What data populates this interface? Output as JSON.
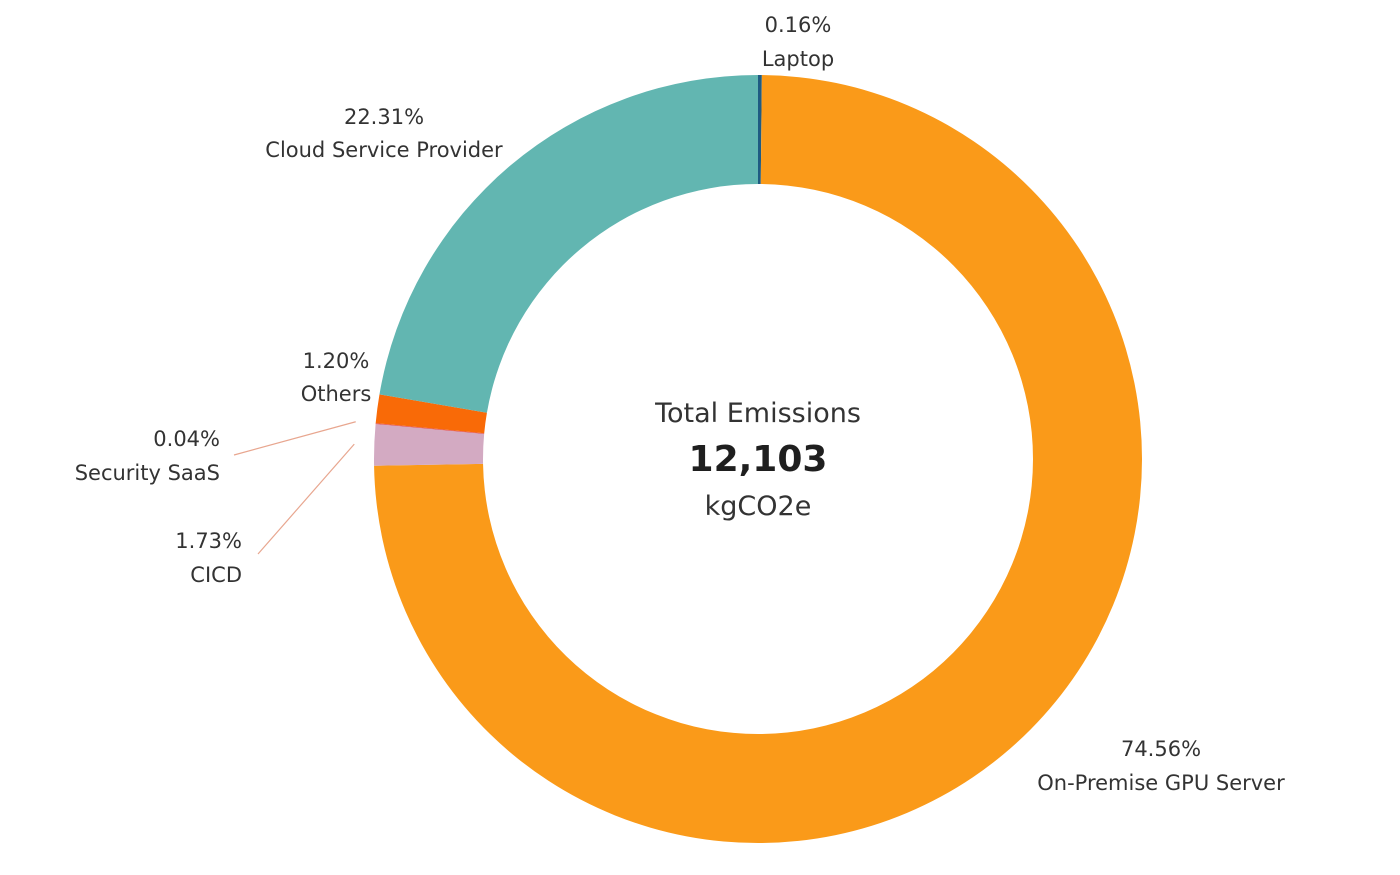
{
  "chart_data": {
    "type": "pie",
    "variant": "donut",
    "title": "",
    "center": {
      "title": "Total Emissions",
      "value": "12,103",
      "unit": "kgCO2e"
    },
    "total": 12103,
    "slices": [
      {
        "name": "Laptop",
        "percent": 0.16,
        "percent_label": "0.16%",
        "color": "#1f5b82"
      },
      {
        "name": "On-Premise GPU Server",
        "percent": 74.56,
        "percent_label": "74.56%",
        "color": "#fa9a19"
      },
      {
        "name": "CICD",
        "percent": 1.73,
        "percent_label": "1.73%",
        "color": "#d3aac2"
      },
      {
        "name": "Security SaaS",
        "percent": 0.04,
        "percent_label": "0.04%",
        "color": "#e15759"
      },
      {
        "name": "Others",
        "percent": 1.2,
        "percent_label": "1.20%",
        "color": "#f96a07"
      },
      {
        "name": "Cloud Service Provider",
        "percent": 22.31,
        "percent_label": "22.31%",
        "color": "#62b6b1"
      }
    ],
    "start_angle_deg": 0,
    "direction": "clockwise",
    "leader_line_color": "#e8a68f"
  }
}
